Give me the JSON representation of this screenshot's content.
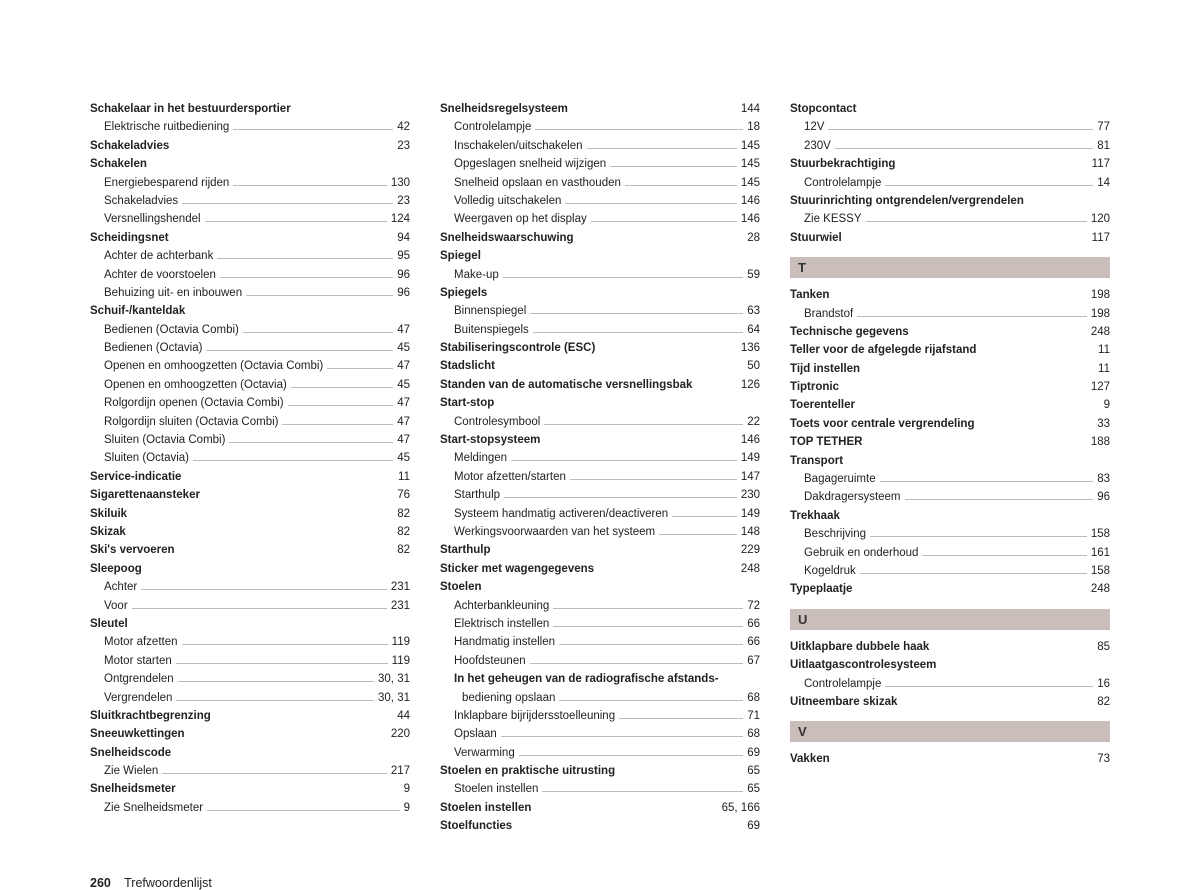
{
  "colors": {
    "background": "#ffffff",
    "text": "#222222",
    "dots": "#bbbbbb",
    "letterbar_bg": "#c9beb9",
    "letterbar_text": "#333333"
  },
  "typography": {
    "body_fontsize": 11.5,
    "footer_fontsize": 12.5,
    "letterbar_fontsize": 13,
    "line_height": 1.6
  },
  "footer": {
    "page_number": "260",
    "title": "Trefwoordenlijst"
  },
  "columns": [
    [
      {
        "type": "header",
        "label": "Schakelaar in het bestuurdersportier"
      },
      {
        "type": "sub",
        "label": "Elektrische ruitbediening",
        "page": "42"
      },
      {
        "type": "bold",
        "label": "Schakeladvies",
        "page": "23"
      },
      {
        "type": "header",
        "label": "Schakelen"
      },
      {
        "type": "sub",
        "label": "Energiebesparend rijden",
        "page": "130"
      },
      {
        "type": "sub",
        "label": "Schakeladvies",
        "page": "23"
      },
      {
        "type": "sub",
        "label": "Versnellingshendel",
        "page": "124"
      },
      {
        "type": "bold",
        "label": "Scheidingsnet",
        "page": "94"
      },
      {
        "type": "sub",
        "label": "Achter de achterbank",
        "page": "95"
      },
      {
        "type": "sub",
        "label": "Achter de voorstoelen",
        "page": "96"
      },
      {
        "type": "sub",
        "label": "Behuizing uit- en inbouwen",
        "page": "96"
      },
      {
        "type": "header",
        "label": "Schuif-/kanteldak"
      },
      {
        "type": "sub",
        "label": "Bedienen (Octavia Combi)",
        "page": "47"
      },
      {
        "type": "sub",
        "label": "Bedienen (Octavia)",
        "page": "45"
      },
      {
        "type": "sub",
        "label": "Openen en omhoogzetten (Octavia Combi)",
        "page": "47"
      },
      {
        "type": "sub",
        "label": "Openen en omhoogzetten (Octavia)",
        "page": "45"
      },
      {
        "type": "sub",
        "label": "Rolgordijn openen (Octavia Combi)",
        "page": "47"
      },
      {
        "type": "sub",
        "label": "Rolgordijn sluiten (Octavia Combi)",
        "page": "47"
      },
      {
        "type": "sub",
        "label": "Sluiten (Octavia Combi)",
        "page": "47"
      },
      {
        "type": "sub",
        "label": "Sluiten (Octavia)",
        "page": "45"
      },
      {
        "type": "bold",
        "label": "Service-indicatie",
        "page": "11"
      },
      {
        "type": "bold",
        "label": "Sigarettenaansteker",
        "page": "76"
      },
      {
        "type": "bold",
        "label": "Skiluik",
        "page": "82"
      },
      {
        "type": "bold",
        "label": "Skizak",
        "page": "82"
      },
      {
        "type": "bold",
        "label": "Ski's vervoeren",
        "page": "82"
      },
      {
        "type": "header",
        "label": "Sleepoog"
      },
      {
        "type": "sub",
        "label": "Achter",
        "page": "231"
      },
      {
        "type": "sub",
        "label": "Voor",
        "page": "231"
      },
      {
        "type": "header",
        "label": "Sleutel"
      },
      {
        "type": "sub",
        "label": "Motor afzetten",
        "page": "119"
      },
      {
        "type": "sub",
        "label": "Motor starten",
        "page": "119"
      },
      {
        "type": "sub",
        "label": "Ontgrendelen",
        "page": "30, 31"
      },
      {
        "type": "sub",
        "label": "Vergrendelen",
        "page": "30, 31"
      },
      {
        "type": "bold",
        "label": "Sluitkrachtbegrenzing",
        "page": "44"
      },
      {
        "type": "bold",
        "label": "Sneeuwkettingen",
        "page": "220"
      },
      {
        "type": "header",
        "label": "Snelheidscode"
      },
      {
        "type": "sub",
        "label": "Zie Wielen",
        "page": "217"
      },
      {
        "type": "bold",
        "label": "Snelheidsmeter",
        "page": "9"
      },
      {
        "type": "sub",
        "label": "Zie Snelheidsmeter",
        "page": "9"
      }
    ],
    [
      {
        "type": "bold",
        "label": "Snelheidsregelsysteem",
        "page": "144"
      },
      {
        "type": "sub",
        "label": "Controlelampje",
        "page": "18"
      },
      {
        "type": "sub",
        "label": "Inschakelen/uitschakelen",
        "page": "145"
      },
      {
        "type": "sub",
        "label": "Opgeslagen snelheid wijzigen",
        "page": "145"
      },
      {
        "type": "sub",
        "label": "Snelheid opslaan en vasthouden",
        "page": "145"
      },
      {
        "type": "sub",
        "label": "Volledig uitschakelen",
        "page": "146"
      },
      {
        "type": "sub",
        "label": "Weergaven op het display",
        "page": "146"
      },
      {
        "type": "bold",
        "label": "Snelheidswaarschuwing",
        "page": "28"
      },
      {
        "type": "header",
        "label": "Spiegel"
      },
      {
        "type": "sub",
        "label": "Make-up",
        "page": "59"
      },
      {
        "type": "header",
        "label": "Spiegels"
      },
      {
        "type": "sub",
        "label": "Binnenspiegel",
        "page": "63"
      },
      {
        "type": "sub",
        "label": "Buitenspiegels",
        "page": "64"
      },
      {
        "type": "bold",
        "label": "Stabiliseringscontrole (ESC)",
        "page": "136"
      },
      {
        "type": "bold",
        "label": "Stadslicht",
        "page": "50"
      },
      {
        "type": "bold",
        "label": "Standen van de automatische versnellingsbak",
        "page": "126"
      },
      {
        "type": "header",
        "label": "Start-stop"
      },
      {
        "type": "sub",
        "label": "Controlesymbool",
        "page": "22"
      },
      {
        "type": "bold",
        "label": "Start-stopsysteem",
        "page": "146"
      },
      {
        "type": "sub",
        "label": "Meldingen",
        "page": "149"
      },
      {
        "type": "sub",
        "label": "Motor afzetten/starten",
        "page": "147"
      },
      {
        "type": "sub",
        "label": "Starthulp",
        "page": "230"
      },
      {
        "type": "sub",
        "label": "Systeem handmatig activeren/deactiveren",
        "page": "149"
      },
      {
        "type": "sub",
        "label": "Werkingsvoorwaarden van het systeem",
        "page": "148"
      },
      {
        "type": "bold",
        "label": "Starthulp",
        "page": "229"
      },
      {
        "type": "bold",
        "label": "Sticker met wagengegevens",
        "page": "248"
      },
      {
        "type": "header",
        "label": "Stoelen"
      },
      {
        "type": "sub",
        "label": "Achterbankleuning",
        "page": "72"
      },
      {
        "type": "sub",
        "label": "Elektrisch instellen",
        "page": "66"
      },
      {
        "type": "sub",
        "label": "Handmatig instellen",
        "page": "66"
      },
      {
        "type": "sub",
        "label": "Hoofdsteunen",
        "page": "67"
      },
      {
        "type": "subheader",
        "label": "In het geheugen van de radiografische afstands-"
      },
      {
        "type": "continuation",
        "label": "bediening opslaan",
        "page": "68"
      },
      {
        "type": "sub",
        "label": "Inklapbare bijrijdersstoelleuning",
        "page": "71"
      },
      {
        "type": "sub",
        "label": "Opslaan",
        "page": "68"
      },
      {
        "type": "sub",
        "label": "Verwarming",
        "page": "69"
      },
      {
        "type": "bold",
        "label": "Stoelen en praktische uitrusting",
        "page": "65"
      },
      {
        "type": "sub",
        "label": "Stoelen instellen",
        "page": "65"
      },
      {
        "type": "bold",
        "label": "Stoelen instellen",
        "page": "65, 166"
      },
      {
        "type": "bold",
        "label": "Stoelfuncties",
        "page": "69"
      }
    ],
    [
      {
        "type": "header",
        "label": "Stopcontact"
      },
      {
        "type": "sub",
        "label": "12V",
        "page": "77"
      },
      {
        "type": "sub",
        "label": "230V",
        "page": "81"
      },
      {
        "type": "bold",
        "label": "Stuurbekrachtiging",
        "page": "117"
      },
      {
        "type": "sub",
        "label": "Controlelampje",
        "page": "14"
      },
      {
        "type": "header",
        "label": "Stuurinrichting ontgrendelen/vergrendelen"
      },
      {
        "type": "sub",
        "label": "Zie KESSY",
        "page": "120"
      },
      {
        "type": "bold",
        "label": "Stuurwiel",
        "page": "117"
      },
      {
        "type": "letterbar",
        "label": "T"
      },
      {
        "type": "bold",
        "label": "Tanken",
        "page": "198"
      },
      {
        "type": "sub",
        "label": "Brandstof",
        "page": "198"
      },
      {
        "type": "bold",
        "label": "Technische gegevens",
        "page": "248"
      },
      {
        "type": "bold",
        "label": "Teller voor de afgelegde rijafstand",
        "page": "11"
      },
      {
        "type": "bold",
        "label": "Tijd instellen",
        "page": "11"
      },
      {
        "type": "bold",
        "label": "Tiptronic",
        "page": "127"
      },
      {
        "type": "bold",
        "label": "Toerenteller",
        "page": "9"
      },
      {
        "type": "bold",
        "label": "Toets voor centrale vergrendeling",
        "page": "33"
      },
      {
        "type": "bold",
        "label": "TOP TETHER",
        "page": "188"
      },
      {
        "type": "header",
        "label": "Transport"
      },
      {
        "type": "sub",
        "label": "Bagageruimte",
        "page": "83"
      },
      {
        "type": "sub",
        "label": "Dakdragersysteem",
        "page": "96"
      },
      {
        "type": "header",
        "label": "Trekhaak"
      },
      {
        "type": "sub",
        "label": "Beschrijving",
        "page": "158"
      },
      {
        "type": "sub",
        "label": "Gebruik en onderhoud",
        "page": "161"
      },
      {
        "type": "sub",
        "label": "Kogeldruk",
        "page": "158"
      },
      {
        "type": "bold",
        "label": "Typeplaatje",
        "page": "248"
      },
      {
        "type": "letterbar",
        "label": "U"
      },
      {
        "type": "bold",
        "label": "Uitklapbare dubbele haak",
        "page": "85"
      },
      {
        "type": "header",
        "label": "Uitlaatgascontrolesysteem"
      },
      {
        "type": "sub",
        "label": "Controlelampje",
        "page": "16"
      },
      {
        "type": "bold",
        "label": "Uitneembare skizak",
        "page": "82"
      },
      {
        "type": "letterbar",
        "label": "V"
      },
      {
        "type": "bold",
        "label": "Vakken",
        "page": "73"
      }
    ]
  ]
}
